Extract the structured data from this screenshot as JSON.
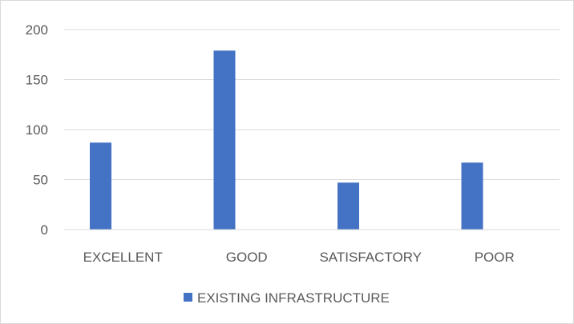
{
  "chart_data": {
    "type": "bar",
    "categories": [
      "EXCELLENT",
      "GOOD",
      "SATISFACTORY",
      "POOR"
    ],
    "series": [
      {
        "name": "EXISTING INFRASTRUCTURE",
        "values": [
          87,
          179,
          47,
          67
        ],
        "color": "#4472c4"
      }
    ],
    "ylim": [
      0,
      200
    ],
    "yticks": [
      0,
      50,
      100,
      150,
      200
    ],
    "grid": true,
    "legend": "bottom"
  }
}
